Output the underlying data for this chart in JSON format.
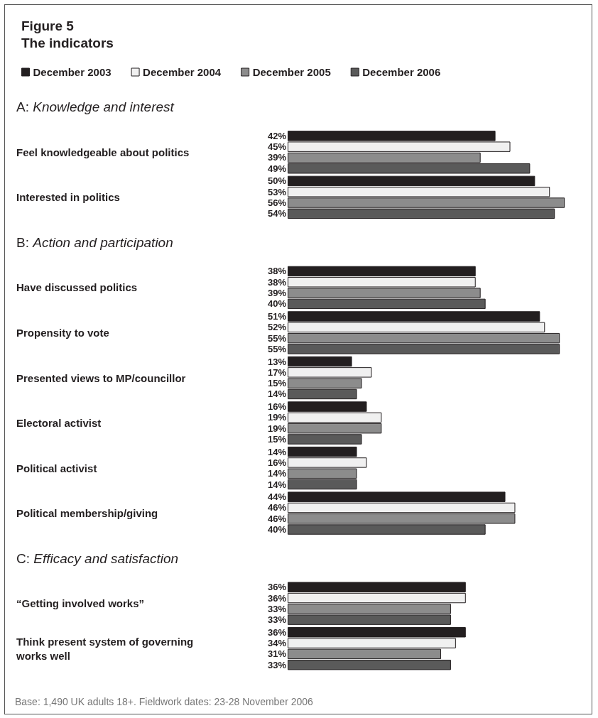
{
  "chart_data": {
    "type": "bar",
    "orientation": "horizontal",
    "title": "Figure 5\nThe indicators",
    "categories": [
      "A: Knowledge and interest",
      "Feel knowledgeable about politics",
      "Interested in politics",
      "B: Action and participation",
      "Have discussed politics",
      "Propensity to vote",
      "Presented views to MP/councillor",
      "Electoral activist",
      "Political activist",
      "Political membership/giving",
      "C: Efficacy and satisfaction",
      "“Getting involved works”",
      "Think present system of governing works well"
    ],
    "series": [
      {
        "name": "December 2003",
        "color": "#231f20",
        "values": [
          null,
          42,
          50,
          null,
          38,
          51,
          13,
          16,
          14,
          44,
          null,
          36,
          36
        ],
        "value_labels": [
          null,
          "42%",
          "50%",
          null,
          "38%",
          "51%",
          "13%",
          "16%",
          "14%",
          "44%",
          null,
          "36%",
          "36%"
        ]
      },
      {
        "name": "December 2004",
        "color": "#f0f0f0",
        "values": [
          null,
          45,
          53,
          null,
          38,
          52,
          17,
          19,
          16,
          46,
          null,
          36,
          34
        ],
        "value_labels": [
          null,
          "45%",
          "53%",
          null,
          "38%",
          "52%",
          "17%",
          "19%",
          "16%",
          "46%",
          null,
          "36%",
          "34%"
        ]
      },
      {
        "name": "December 2005",
        "color": "#8c8c8c",
        "values": [
          null,
          39,
          56,
          null,
          39,
          55,
          15,
          19,
          14,
          46,
          null,
          33,
          31
        ],
        "value_labels": [
          null,
          "39%",
          "56%",
          null,
          "39%",
          "55%",
          "15%",
          "19%",
          "14%",
          "46%",
          null,
          "33%",
          "31%"
        ]
      },
      {
        "name": "December 2006",
        "color": "#5a5a5a",
        "values": [
          null,
          49,
          54,
          null,
          40,
          55,
          14,
          15,
          14,
          40,
          null,
          33,
          33
        ],
        "value_labels": [
          null,
          "49%",
          "54%",
          null,
          "40%",
          "55%",
          "14%",
          "15%",
          "14%",
          "40%",
          null,
          "33%",
          "33%"
        ]
      }
    ],
    "legend": "top left",
    "grid": false,
    "annotations": [
      "Base: 1,490 UK adults 18+. Fieldwork dates: 23-28 November 2006"
    ]
  }
}
